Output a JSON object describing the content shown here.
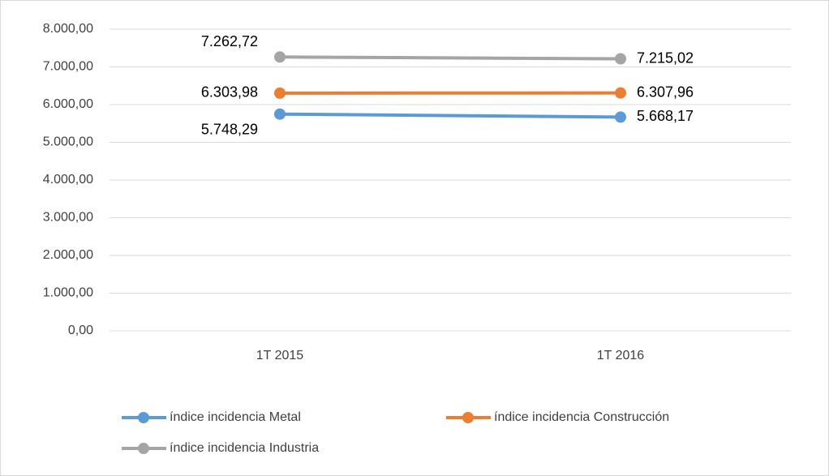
{
  "chart_data": {
    "type": "line",
    "categories": [
      "1T 2015",
      "1T 2016"
    ],
    "series": [
      {
        "name": "índice incidencia Metal",
        "color": "#5b9bd5",
        "values": [
          5748.29,
          5668.17
        ],
        "value_labels": [
          "5.748,29",
          "5.668,17"
        ]
      },
      {
        "name": "índice incidencia Construcción",
        "color": "#ed7d31",
        "values": [
          6303.98,
          6307.96
        ],
        "value_labels": [
          "6.303,98",
          "6.307,96"
        ]
      },
      {
        "name": "índice incidencia Industria",
        "color": "#a5a5a5",
        "values": [
          7262.72,
          7215.02
        ],
        "value_labels": [
          "7.262,72",
          "7.215,02"
        ]
      }
    ],
    "ylim": [
      0,
      8000
    ],
    "yticks": [
      {
        "value": 0,
        "label": "0,00"
      },
      {
        "value": 1000,
        "label": "1.000,00"
      },
      {
        "value": 2000,
        "label": "2.000,00"
      },
      {
        "value": 3000,
        "label": "3.000,00"
      },
      {
        "value": 4000,
        "label": "4.000,00"
      },
      {
        "value": 5000,
        "label": "5.000,00"
      },
      {
        "value": 6000,
        "label": "6.000,00"
      },
      {
        "value": 7000,
        "label": "7.000,00"
      },
      {
        "value": 8000,
        "label": "8.000,00"
      }
    ],
    "grid": true,
    "legend": "bottom"
  }
}
